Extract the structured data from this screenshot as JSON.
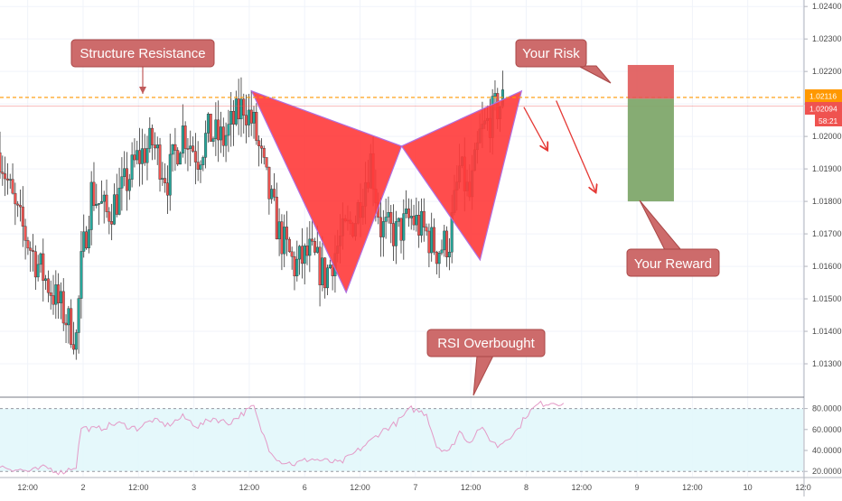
{
  "chart_data": {
    "type": "candlestick",
    "price_axis": {
      "ylim": [
        1.012,
        1.0242
      ],
      "ticks": [
        1.024,
        1.023,
        1.022,
        1.021,
        1.02,
        1.019,
        1.018,
        1.017,
        1.016,
        1.015,
        1.014,
        1.013
      ],
      "tick_labels": [
        "1.02400",
        "1.02300",
        "1.02200",
        "1.02100",
        "1.02000",
        "1.01900",
        "1.01800",
        "1.01700",
        "1.01600",
        "1.01500",
        "1.01400",
        "1.01300"
      ],
      "price_tag_upper": "1.02116",
      "price_tag_mid": "1.02094",
      "countdown": "58:21"
    },
    "rsi_axis": {
      "ylim": [
        15,
        90
      ],
      "ticks": [
        80,
        60,
        40,
        20
      ],
      "tick_labels": [
        "80.0000",
        "60.0000",
        "40.0000",
        "20.0000"
      ],
      "band": [
        20,
        80
      ]
    },
    "time_axis": {
      "labels": [
        "12:00",
        "2",
        "12:00",
        "3",
        "12:00",
        "6",
        "12:00",
        "7",
        "12:00",
        "8",
        "12:00",
        "9",
        "12:00",
        "10",
        "12:0"
      ],
      "label_hours": [
        12,
        24,
        36,
        48,
        60,
        72,
        84,
        96,
        108,
        120,
        132,
        144,
        156,
        168,
        180
      ],
      "hour_range": [
        6,
        180
      ]
    },
    "resistance_level": 1.0212,
    "candles": {
      "t_start": 6,
      "t_step": 0.55,
      "open_seed": 1.0195,
      "anchors": [
        [
          0,
          1.0195
        ],
        [
          6,
          1.0177
        ],
        [
          14,
          1.0162
        ],
        [
          22,
          1.015
        ],
        [
          30,
          1.0138
        ],
        [
          32,
          1.016
        ],
        [
          36,
          1.0183
        ],
        [
          42,
          1.0176
        ],
        [
          48,
          1.0183
        ],
        [
          54,
          1.0193
        ],
        [
          60,
          1.0198
        ],
        [
          66,
          1.0187
        ],
        [
          72,
          1.0202
        ],
        [
          78,
          1.0194
        ],
        [
          82,
          1.0201
        ],
        [
          88,
          1.0199
        ],
        [
          96,
          1.021
        ],
        [
          100,
          1.0203
        ],
        [
          102,
          1.0196
        ],
        [
          106,
          1.0182
        ],
        [
          110,
          1.017
        ],
        [
          116,
          1.016
        ],
        [
          122,
          1.0164
        ],
        [
          128,
          1.0157
        ],
        [
          134,
          1.0168
        ],
        [
          140,
          1.0175
        ],
        [
          146,
          1.0193
        ],
        [
          150,
          1.0172
        ],
        [
          156,
          1.017
        ],
        [
          162,
          1.0175
        ],
        [
          168,
          1.017
        ],
        [
          172,
          1.0165
        ],
        [
          177,
          1.0168
        ],
        [
          181,
          1.019
        ],
        [
          185,
          1.0181
        ],
        [
          189,
          1.02
        ],
        [
          195,
          1.0208
        ],
        [
          198,
          1.0211
        ]
      ]
    },
    "bat_pattern": {
      "points": [
        [
          60.5,
          1.0214
        ],
        [
          81,
          1.0152
        ],
        [
          93,
          1.0197
        ],
        [
          110,
          1.0162
        ],
        [
          119,
          1.0214
        ]
      ]
    },
    "rsi_series": {
      "anchors": [
        [
          0,
          25
        ],
        [
          6,
          22
        ],
        [
          12,
          20
        ],
        [
          18,
          24
        ],
        [
          24,
          19
        ],
        [
          30,
          25
        ],
        [
          32,
          62
        ],
        [
          38,
          60
        ],
        [
          46,
          66
        ],
        [
          54,
          61
        ],
        [
          60,
          69
        ],
        [
          66,
          64
        ],
        [
          72,
          72
        ],
        [
          78,
          63
        ],
        [
          84,
          71
        ],
        [
          90,
          66
        ],
        [
          96,
          76
        ],
        [
          100,
          82
        ],
        [
          102,
          65
        ],
        [
          106,
          42
        ],
        [
          110,
          30
        ],
        [
          116,
          27
        ],
        [
          122,
          32
        ],
        [
          128,
          30
        ],
        [
          134,
          28
        ],
        [
          140,
          38
        ],
        [
          146,
          49
        ],
        [
          150,
          58
        ],
        [
          156,
          66
        ],
        [
          162,
          80
        ],
        [
          168,
          75
        ],
        [
          172,
          44
        ],
        [
          177,
          39
        ],
        [
          181,
          58
        ],
        [
          185,
          48
        ],
        [
          189,
          62
        ],
        [
          193,
          51
        ],
        [
          196,
          44
        ],
        [
          200,
          52
        ],
        [
          204,
          60
        ],
        [
          207,
          73
        ],
        [
          212,
          84
        ],
        [
          218,
          86
        ],
        [
          222,
          85
        ]
      ]
    },
    "arrows": [
      {
        "from": [
          119.5,
          1.0209
        ],
        "to": [
          124.5,
          1.0196
        ]
      },
      {
        "from": [
          126.5,
          1.0211
        ],
        "to": [
          135,
          1.0183
        ]
      }
    ],
    "position_box": {
      "t_from": 142,
      "t_to": 152,
      "risk": [
        1.02116,
        1.0222
      ],
      "reward": [
        1.018,
        1.02116
      ]
    },
    "annotations": {
      "structure_resistance": "Structure Resistance",
      "your_risk": "Your Risk",
      "your_reward": "Your Reward",
      "rsi_overbought": "RSI Overbought"
    },
    "colors": {
      "bull": "#26a69a",
      "bear": "#ef5350",
      "pattern_fill": "#ff3a3a",
      "pattern_edge": "#b06ee0",
      "callout_fill": "#cd6b6b",
      "risk": "#e05858",
      "reward": "#7fa86b",
      "resistance": "#ff9800",
      "rsi_line": "#e49ac7",
      "rsi_band": "#e0f7fa",
      "arrow": "#e53935"
    }
  }
}
